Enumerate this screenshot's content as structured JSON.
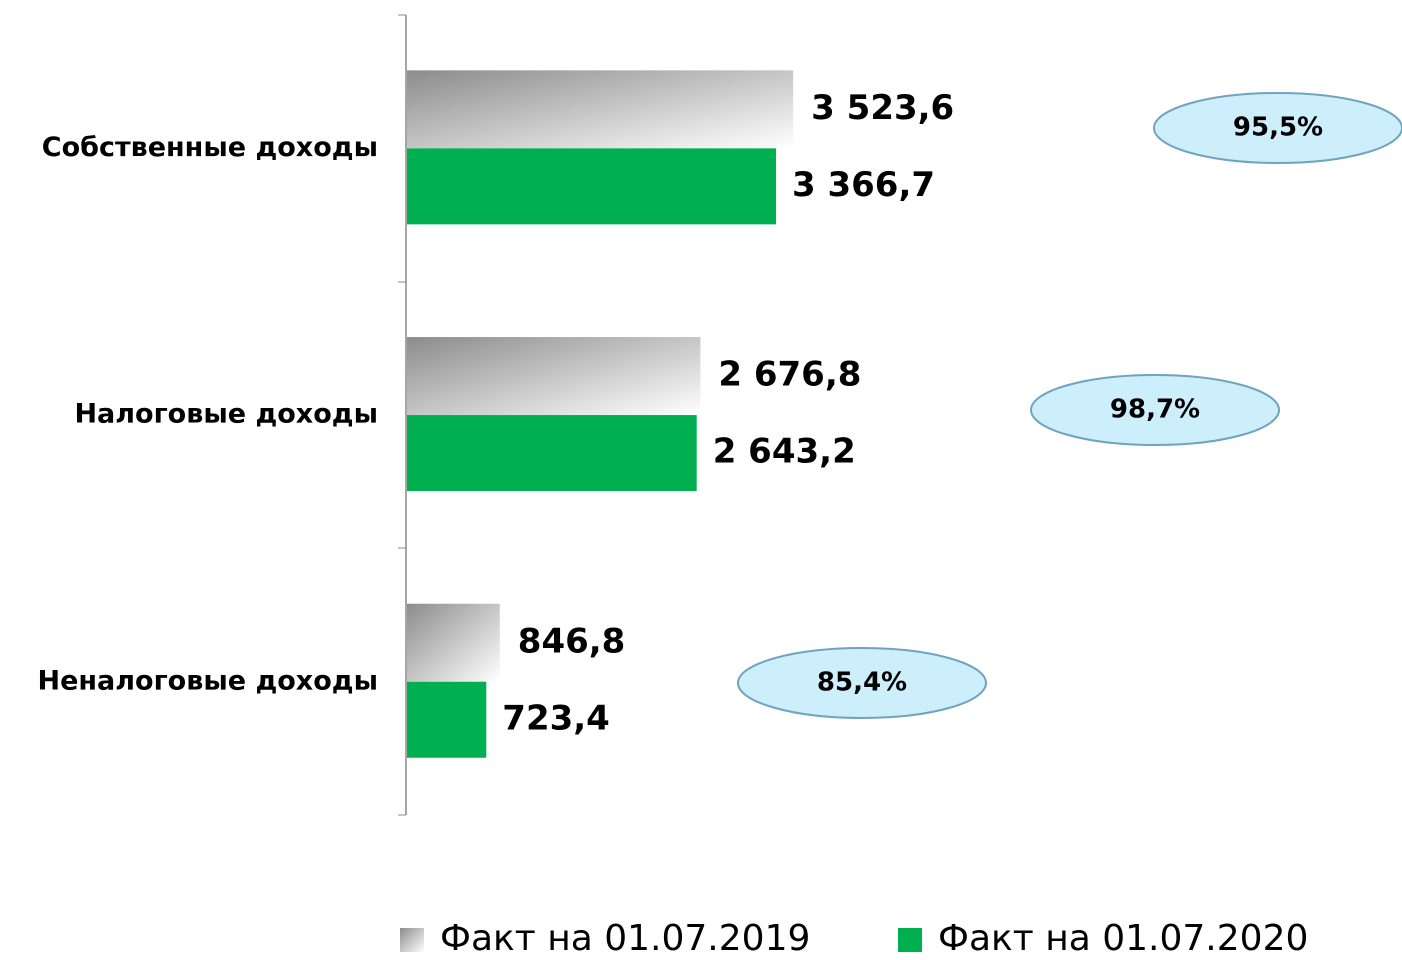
{
  "chart_data": {
    "type": "bar",
    "orientation": "horizontal",
    "categories": [
      "Собственные доходы",
      "Налоговые доходы",
      "Неналоговые доходы"
    ],
    "series": [
      {
        "name": "Факт на 01.07.2019",
        "color": "#a6a6a6",
        "values": [
          3523.6,
          2676.8,
          846.8
        ],
        "value_labels": [
          "3 523,6",
          "2 676,8",
          "846,8"
        ]
      },
      {
        "name": "Факт на 01.07.2020",
        "color": "#00b050",
        "values": [
          3366.7,
          2643.2,
          723.4
        ],
        "value_labels": [
          "3 366,7",
          "2 643,2",
          "723,4"
        ]
      }
    ],
    "annotations": [
      "95,5%",
      "98,7%",
      "85,4%"
    ],
    "legend": "bottom"
  }
}
